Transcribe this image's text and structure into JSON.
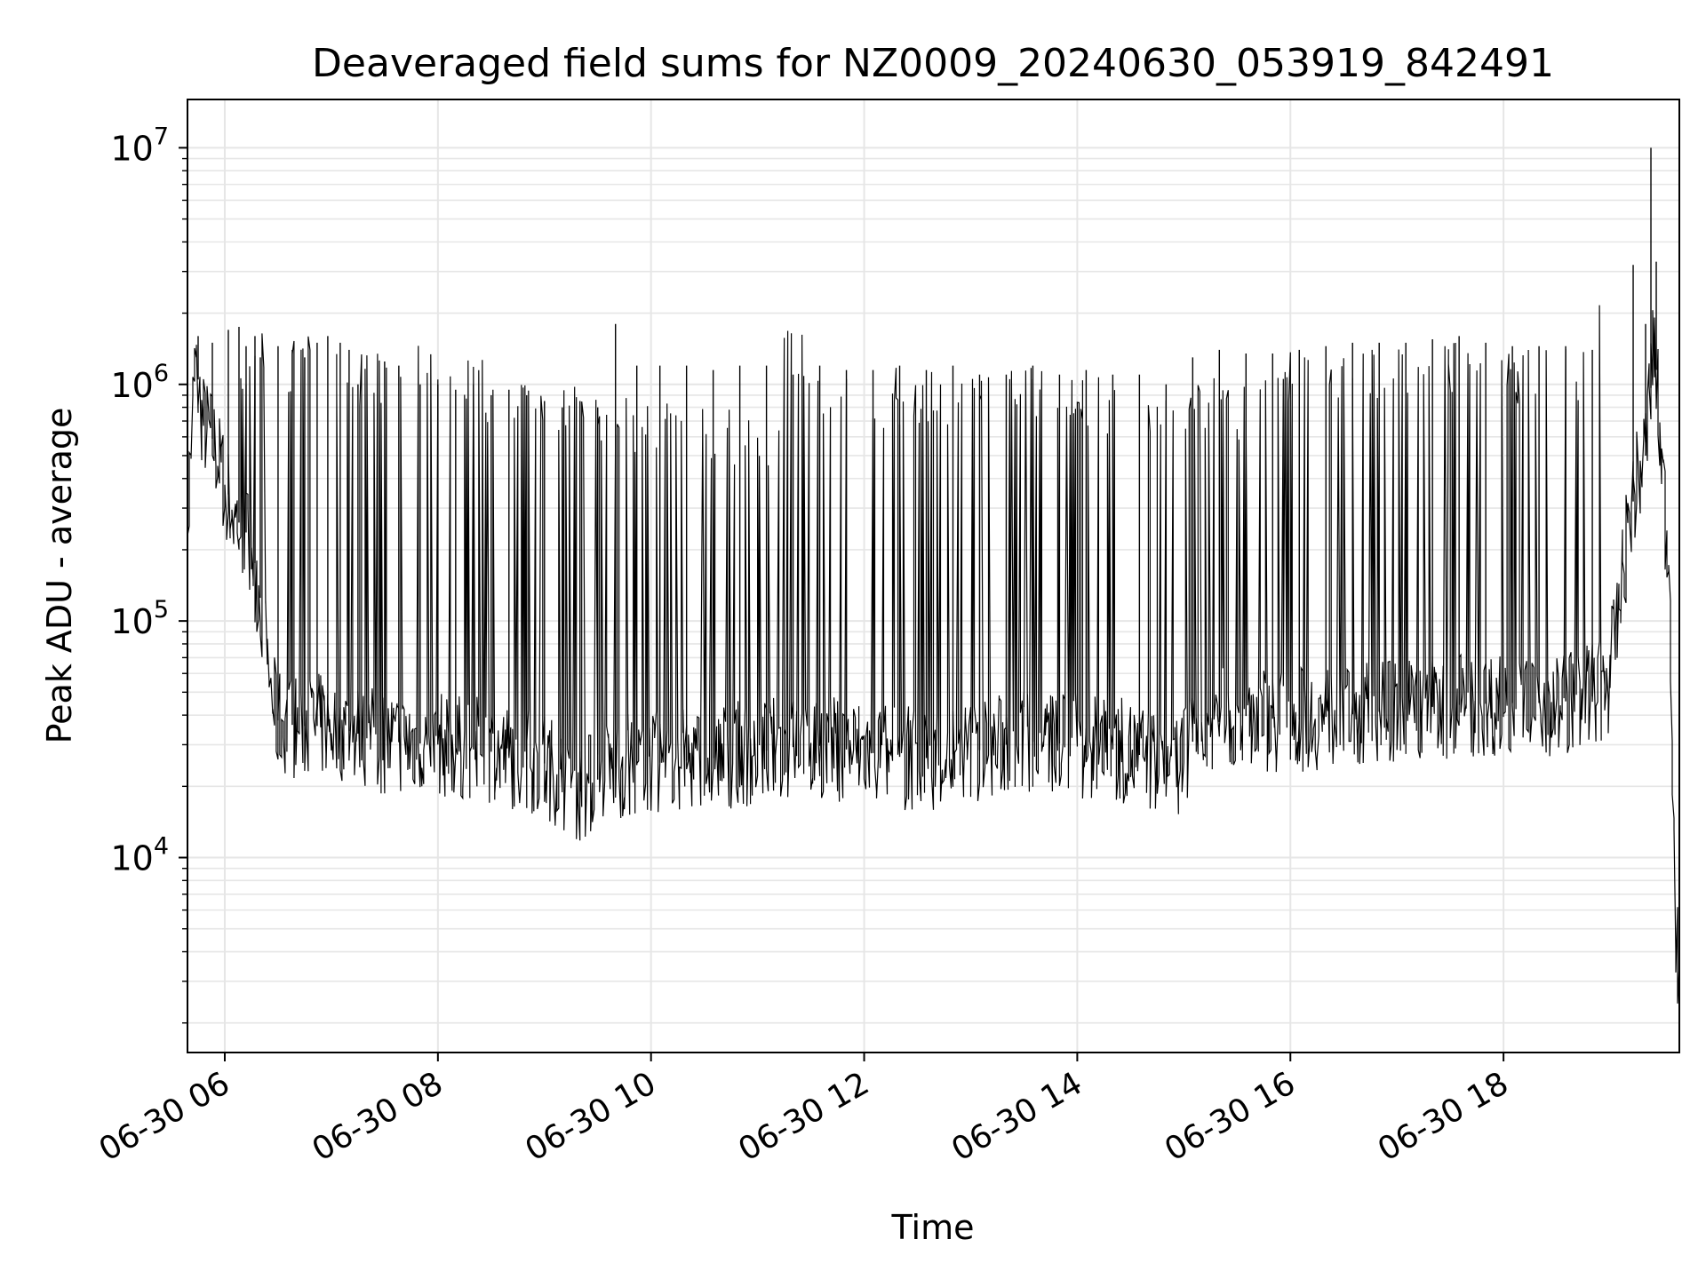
{
  "chart_data": {
    "type": "line",
    "title": "Deaveraged field sums for NZ0009_20240630_053919_842491",
    "xlabel": "Time",
    "ylabel": "Peak ADU - average",
    "yscale": "log",
    "ylim": [
      1500,
      16000000
    ],
    "xlim": [
      "2024-06-30 05:39",
      "2024-06-30 19:39"
    ],
    "grid": true,
    "line_color": "#000000",
    "grid_color": "#e6e6e6",
    "x_ticks": [
      {
        "t": "2024-06-30 06:00",
        "label": "06-30 06"
      },
      {
        "t": "2024-06-30 08:00",
        "label": "06-30 08"
      },
      {
        "t": "2024-06-30 10:00",
        "label": "06-30 10"
      },
      {
        "t": "2024-06-30 12:00",
        "label": "06-30 12"
      },
      {
        "t": "2024-06-30 14:00",
        "label": "06-30 14"
      },
      {
        "t": "2024-06-30 16:00",
        "label": "06-30 16"
      },
      {
        "t": "2024-06-30 18:00",
        "label": "06-30 18"
      }
    ],
    "y_ticks": [
      {
        "value": 10000,
        "base": "10",
        "exp": "4"
      },
      {
        "value": 100000,
        "base": "10",
        "exp": "5"
      },
      {
        "value": 1000000,
        "base": "10",
        "exp": "6"
      },
      {
        "value": 10000000,
        "base": "10",
        "exp": "7"
      }
    ],
    "series": [
      {
        "baseline": {
          "x": [
            "2024-06-30 05:39",
            "2024-06-30 05:44",
            "2024-06-30 05:48",
            "2024-06-30 05:55",
            "2024-06-30 06:05",
            "2024-06-30 06:15",
            "2024-06-30 06:22",
            "2024-06-30 06:27",
            "2024-06-30 06:30",
            "2024-06-30 06:40",
            "2024-06-30 07:00",
            "2024-06-30 07:30",
            "2024-06-30 08:00",
            "2024-06-30 08:30",
            "2024-06-30 09:00",
            "2024-06-30 09:20",
            "2024-06-30 09:40",
            "2024-06-30 10:00",
            "2024-06-30 10:30",
            "2024-06-30 11:00",
            "2024-06-30 11:30",
            "2024-06-30 12:00",
            "2024-06-30 12:30",
            "2024-06-30 13:00",
            "2024-06-30 13:30",
            "2024-06-30 14:00",
            "2024-06-30 14:30",
            "2024-06-30 14:55",
            "2024-06-30 15:10",
            "2024-06-30 15:30",
            "2024-06-30 16:00",
            "2024-06-30 16:30",
            "2024-06-30 17:00",
            "2024-06-30 17:30",
            "2024-06-30 18:00",
            "2024-06-30 18:30",
            "2024-06-30 18:50",
            "2024-06-30 19:00",
            "2024-06-30 19:05",
            "2024-06-30 19:12",
            "2024-06-30 19:20",
            "2024-06-30 19:25",
            "2024-06-30 19:30",
            "2024-06-30 19:34",
            "2024-06-30 19:37",
            "2024-06-30 19:39"
          ],
          "y": [
            200000,
            1200000,
            700000,
            550000,
            280000,
            220000,
            100000,
            50000,
            38000,
            36000,
            36000,
            31000,
            30000,
            28000,
            25000,
            19000,
            24000,
            25000,
            26000,
            28000,
            30000,
            28000,
            26000,
            28000,
            31000,
            30000,
            28000,
            24000,
            35000,
            40000,
            38000,
            40000,
            42000,
            44000,
            45000,
            45000,
            48000,
            55000,
            100000,
            300000,
            500000,
            1500000,
            400000,
            150000,
            6000,
            2500
          ]
        },
        "spikes": {
          "x": [
            "2024-06-30 05:45",
            "2024-06-30 05:53",
            "2024-06-30 06:02",
            "2024-06-30 06:08",
            "2024-06-30 06:12",
            "2024-06-30 06:17",
            "2024-06-30 06:20",
            "2024-06-30 06:30",
            "2024-06-30 06:38",
            "2024-06-30 06:45",
            "2024-06-30 06:52",
            "2024-06-30 06:58",
            "2024-06-30 07:05",
            "2024-06-30 07:10",
            "2024-06-30 07:15",
            "2024-06-30 07:30",
            "2024-06-30 07:38",
            "2024-06-30 07:50",
            "2024-06-30 08:00",
            "2024-06-30 08:10",
            "2024-06-30 08:20",
            "2024-06-30 08:30",
            "2024-06-30 08:40",
            "2024-06-30 08:50",
            "2024-06-30 09:00",
            "2024-06-30 09:10",
            "2024-06-30 09:20",
            "2024-06-30 09:30",
            "2024-06-30 09:40",
            "2024-06-30 09:52",
            "2024-06-30 10:05",
            "2024-06-30 10:20",
            "2024-06-30 10:35",
            "2024-06-30 10:50",
            "2024-06-30 11:05",
            "2024-06-30 11:20",
            "2024-06-30 11:35",
            "2024-06-30 11:50",
            "2024-06-30 12:05",
            "2024-06-30 12:20",
            "2024-06-30 12:35",
            "2024-06-30 12:50",
            "2024-06-30 13:05",
            "2024-06-30 13:20",
            "2024-06-30 13:35",
            "2024-06-30 13:50",
            "2024-06-30 14:05",
            "2024-06-30 14:20",
            "2024-06-30 14:35",
            "2024-06-30 14:50",
            "2024-06-30 15:05",
            "2024-06-30 15:20",
            "2024-06-30 15:35",
            "2024-06-30 15:50",
            "2024-06-30 16:05",
            "2024-06-30 16:20",
            "2024-06-30 16:35",
            "2024-06-30 16:50",
            "2024-06-30 17:05",
            "2024-06-30 17:20",
            "2024-06-30 17:35",
            "2024-06-30 17:50",
            "2024-06-30 18:05",
            "2024-06-30 18:20",
            "2024-06-30 18:35",
            "2024-06-30 18:50",
            "2024-06-30 19:13",
            "2024-06-30 19:20",
            "2024-06-30 19:23",
            "2024-06-30 19:26"
          ],
          "y": [
            1600000,
            1500000,
            1700000,
            1750000,
            1450000,
            1600000,
            1300000,
            1450000,
            1400000,
            1300000,
            1500000,
            1600000,
            1500000,
            1400000,
            1000000,
            1250000,
            1200000,
            1000000,
            1000000,
            950000,
            1000000,
            900000,
            950000,
            900000,
            850000,
            800000,
            850000,
            800000,
            1800000,
            1200000,
            1200000,
            1200000,
            1150000,
            1200000,
            1200000,
            1100000,
            1200000,
            1150000,
            1150000,
            1200000,
            1150000,
            1200000,
            1100000,
            1100000,
            1200000,
            1100000,
            1150000,
            1100000,
            1100000,
            1000000,
            1300000,
            1400000,
            1350000,
            1350000,
            1400000,
            1450000,
            1500000,
            1500000,
            1500000,
            1550000,
            1600000,
            1500000,
            1450000,
            1450000,
            1450000,
            1400000,
            3200000,
            1800000,
            10000000,
            3300000
          ]
        }
      }
    ]
  }
}
